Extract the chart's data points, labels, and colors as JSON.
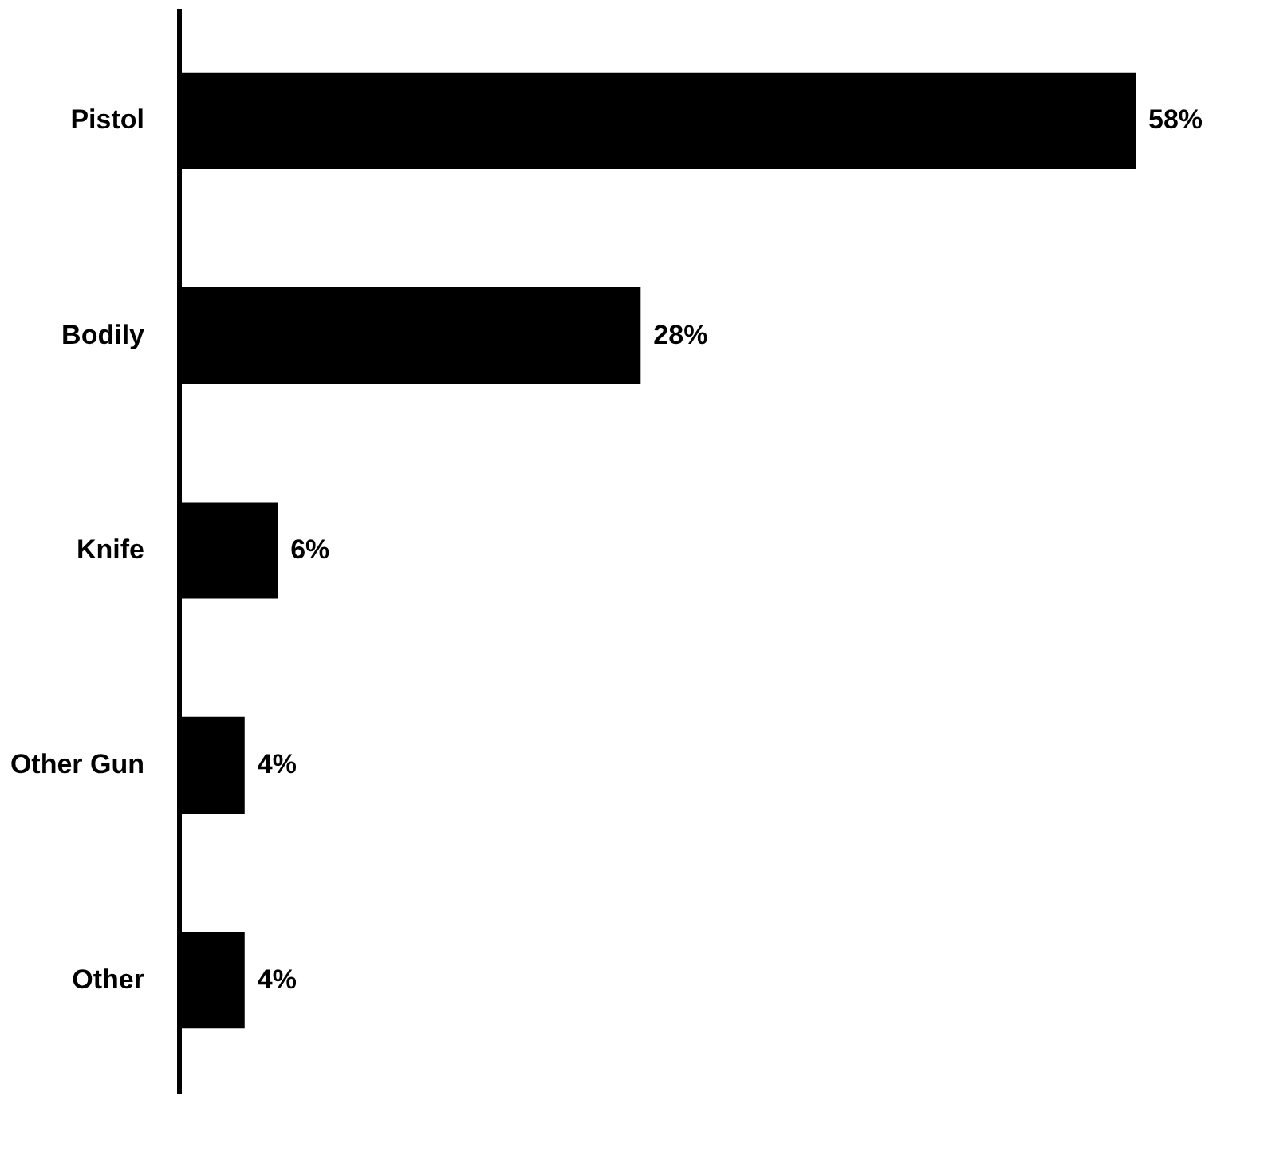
{
  "chart_data": {
    "type": "bar",
    "orientation": "horizontal",
    "categories": [
      "Pistol",
      "Bodily",
      "Knife",
      "Other Gun",
      "Other"
    ],
    "values": [
      58,
      28,
      6,
      4,
      4
    ],
    "color": "#000000",
    "value_labels": [
      "58%",
      "28%",
      "6%",
      "4%",
      "4%"
    ]
  }
}
